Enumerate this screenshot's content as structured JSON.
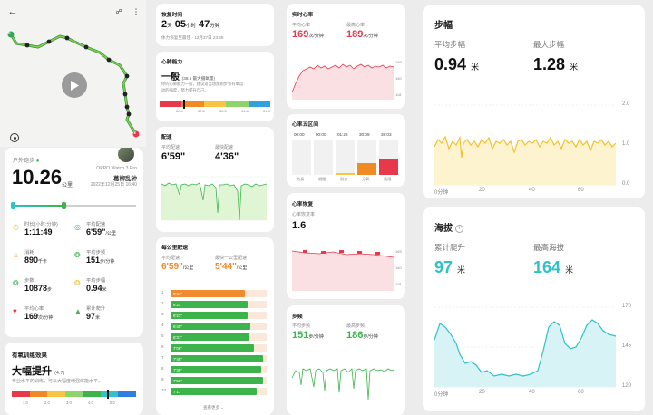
{
  "map": {
    "start": "S",
    "end": "E"
  },
  "run": {
    "label": "户外跑步",
    "distance": "10.26",
    "distance_unit": "公里",
    "device": "OPPO Watch 3 Pro",
    "user": "葛柳乱钟",
    "datetime": "2022年12月25日 16:40",
    "metrics": [
      {
        "name": "时长(小时:分钟)",
        "value": "1:11:49",
        "unit": ""
      },
      {
        "name": "平均配速",
        "value": "6'59\"",
        "unit": "/公里"
      },
      {
        "name": "消耗",
        "value": "890",
        "unit": "千卡"
      },
      {
        "name": "平均步频",
        "value": "151",
        "unit": "步/分钟"
      },
      {
        "name": "步数",
        "value": "10878",
        "unit": "步"
      },
      {
        "name": "平均步幅",
        "value": "0.94",
        "unit": "米"
      },
      {
        "name": "平均心率",
        "value": "169",
        "unit": "次/分钟"
      },
      {
        "name": "累计爬升",
        "value": "97",
        "unit": "米"
      }
    ]
  },
  "training_effect": {
    "title": "有氧训练效果",
    "level": "大幅提升",
    "score": "(4.7)",
    "desc": "专业水平的训练，可以大幅度增强体能水平。",
    "ticks": [
      "1.0",
      "2.0",
      "3.0",
      "4.0",
      "5.0"
    ]
  },
  "recovery": {
    "title": "恢复时间",
    "days": "2",
    "days_unit": "天",
    "hours": "05",
    "hours_unit": "小时",
    "mins": "47",
    "mins_unit": "分钟",
    "note": "体力恢复至最佳 · 12月27日 23:35"
  },
  "cardio": {
    "title": "心肺能力",
    "level": "一般",
    "vo2": "(38.6 最大摄氧量)",
    "desc1": "你的心肺能力一般，建议适当增加跑步等有氧运",
    "desc2": "动的强度，努力提升自己。",
    "ticks": [
      "28.4",
      "32.8",
      "38.5",
      "44.8",
      "51.8"
    ]
  },
  "pace": {
    "title": "配速",
    "avg_label": "平均配速",
    "avg": "6'59\"",
    "best_label": "最快配速",
    "best": "4'36\""
  },
  "split": {
    "title": "每公里配速",
    "avg_label": "平均配速",
    "avg": "6'59\"",
    "avg_unit": "/公里",
    "best_label": "最快一公里配速",
    "best": "5'44\"",
    "best_unit": "/公里",
    "rows": [
      {
        "km": "1",
        "pace": "5'44\"",
        "frac": 0.77
      },
      {
        "km": "2",
        "pace": "6'23\"",
        "frac": 0.8
      },
      {
        "km": "3",
        "pace": "6'23\"",
        "frac": 0.8
      },
      {
        "km": "4",
        "pace": "6'40\"",
        "frac": 0.83
      },
      {
        "km": "5",
        "pace": "6'31\"",
        "frac": 0.82
      },
      {
        "km": "6",
        "pace": "7'06\"",
        "frac": 0.87
      },
      {
        "km": "7",
        "pace": "7'48\"",
        "frac": 0.96
      },
      {
        "km": "8",
        "pace": "7'39\"",
        "frac": 0.94
      },
      {
        "km": "9",
        "pace": "7'50\"",
        "frac": 0.96
      },
      {
        "km": "10",
        "pace": "7'17\"",
        "frac": 0.9
      }
    ],
    "more": "查看更多"
  },
  "heart": {
    "title": "实时心率",
    "avg_label": "平均心率",
    "avg": "169",
    "avg_unit": "次/分钟",
    "max_label": "最高心率",
    "max": "189",
    "max_unit": "次/分钟",
    "ticks": [
      "189",
      "150",
      "118"
    ]
  },
  "zones": {
    "title": "心率五区间",
    "times": [
      "00:00",
      "00:00",
      "01:26",
      "30:09",
      "38:03"
    ],
    "names": [
      "热身",
      "燃脂",
      "耐力",
      "无氧",
      "极限"
    ],
    "fill": [
      0.0,
      0.0,
      0.05,
      0.35,
      0.45
    ],
    "colors": [
      "#8fc3f5",
      "#8fd36b",
      "#f6c544",
      "#f08a24",
      "#e8384b"
    ]
  },
  "hr_recovery": {
    "title": "心率恢复",
    "label": "心率恢复率",
    "value": "1.6",
    "ticks": [
      "169",
      "140",
      "118"
    ]
  },
  "cadence": {
    "title": "步频",
    "avg_label": "平均步频",
    "avg": "151",
    "avg_unit": "步/分钟",
    "max_label": "最高步频",
    "max": "186",
    "max_unit": "步/分钟"
  },
  "stride": {
    "title": "步幅",
    "avg_label": "平均步幅",
    "avg": "0.94",
    "avg_unit": "米",
    "max_label": "最大步幅",
    "max": "1.28",
    "max_unit": "米",
    "yticks": [
      "2.0",
      "1.0",
      "0.0"
    ],
    "xticks": [
      "0分钟",
      "20",
      "40",
      "60"
    ]
  },
  "altitude": {
    "title": "海拔",
    "climb_label": "累计爬升",
    "climb": "97",
    "climb_unit": "米",
    "max_label": "最高海拔",
    "max": "164",
    "max_unit": "米",
    "yticks": [
      "170",
      "145",
      "120"
    ],
    "xticks": [
      "0分钟",
      "20",
      "40",
      "60"
    ]
  },
  "colors": {
    "green": "#3cb44b",
    "orange": "#f08a24",
    "red": "#e8384b",
    "yellow": "#f2c230",
    "teal": "#30c1c9",
    "pace_best": "#f28b30"
  }
}
